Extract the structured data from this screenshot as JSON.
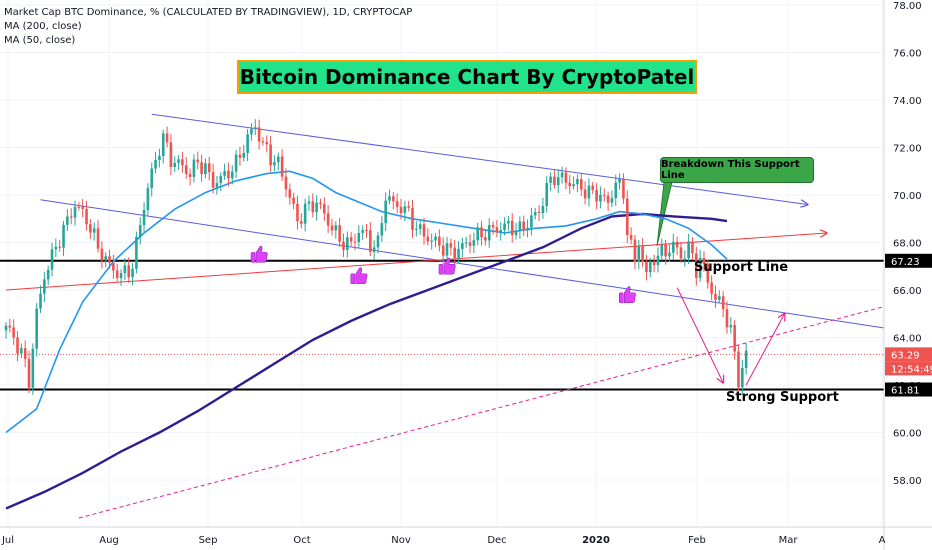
{
  "header": {
    "line1": "Market Cap BTC Dominance, % (CALCULATED BY TRADINGVIEW), 1D, CRYPTOCAP",
    "line2": "MA (200, close)",
    "line3": "MA (50, close)"
  },
  "annotations": {
    "title": "Bitcoin Dominance Chart By CryptoPatel",
    "callout": "Breakdown This Support Line",
    "support_line": "Support Line",
    "strong_support": "Strong Support",
    "thumb_icon": "thumbs-up"
  },
  "colors": {
    "title_bg": "#22e38a",
    "title_border": "#f2a100",
    "up_candle": "#26a69a",
    "down_candle": "#ef5350",
    "ma50": "#2196f3",
    "ma200": "#311b92",
    "channel": "#5b5bdc",
    "red_trend": "#ef3b3b",
    "pink": "#e91e8c",
    "callout_bg": "#3aa648"
  },
  "chart_data": {
    "type": "candlestick",
    "y_ticks": [
      "78.00",
      "76.00",
      "74.00",
      "72.00",
      "70.00",
      "68.00",
      "66.00",
      "64.00",
      "62.00",
      "60.00",
      "58.00"
    ],
    "x_ticks": [
      "Jul",
      "Aug",
      "Sep",
      "Oct",
      "Nov",
      "Dec",
      "2020",
      "Feb",
      "Mar",
      "A"
    ],
    "ylim": [
      56.2,
      78.2
    ],
    "price_labels": {
      "support": "67.23",
      "current": "63.29",
      "countdown": "12:54:49",
      "strong_support": "61.81"
    },
    "close_path": [
      [
        0,
        64.5
      ],
      [
        4,
        63.4
      ],
      [
        6,
        62.2
      ],
      [
        8,
        65.0
      ],
      [
        10,
        66.6
      ],
      [
        13,
        67.8
      ],
      [
        16,
        68.9
      ],
      [
        18,
        69.6
      ],
      [
        21,
        69.0
      ],
      [
        24,
        67.8
      ],
      [
        27,
        67.0
      ],
      [
        30,
        66.6
      ],
      [
        33,
        67.0
      ],
      [
        35,
        68.8
      ],
      [
        37,
        70.3
      ],
      [
        38,
        70.9
      ],
      [
        40,
        72.0
      ],
      [
        41,
        72.4
      ],
      [
        43,
        71.5
      ],
      [
        46,
        71.2
      ],
      [
        48,
        70.9
      ],
      [
        50,
        71.4
      ],
      [
        52,
        71.1
      ],
      [
        54,
        70.5
      ],
      [
        57,
        70.8
      ],
      [
        60,
        71.3
      ],
      [
        63,
        72.4
      ],
      [
        65,
        72.9
      ],
      [
        67,
        72.1
      ],
      [
        69,
        71.6
      ],
      [
        71,
        71.3
      ],
      [
        73,
        70.4
      ],
      [
        76,
        68.9
      ],
      [
        78,
        69.4
      ],
      [
        81,
        69.7
      ],
      [
        84,
        68.9
      ],
      [
        87,
        68.1
      ],
      [
        90,
        67.9
      ],
      [
        92,
        68.5
      ],
      [
        94,
        68.3
      ],
      [
        95,
        67.9
      ],
      [
        97,
        67.9
      ],
      [
        99,
        70.0
      ],
      [
        101,
        69.6
      ],
      [
        103,
        69.5
      ],
      [
        105,
        69.2
      ],
      [
        107,
        68.6
      ],
      [
        110,
        68.2
      ],
      [
        113,
        67.9
      ],
      [
        116,
        67.6
      ],
      [
        119,
        67.8
      ],
      [
        122,
        68.2
      ],
      [
        125,
        68.4
      ],
      [
        128,
        68.6
      ],
      [
        131,
        68.7
      ],
      [
        134,
        68.5
      ],
      [
        137,
        69.0
      ],
      [
        139,
        69.3
      ],
      [
        141,
        70.3
      ],
      [
        143,
        70.8
      ],
      [
        146,
        70.6
      ],
      [
        149,
        70.4
      ],
      [
        152,
        70.1
      ],
      [
        155,
        70.0
      ],
      [
        157,
        69.6
      ],
      [
        159,
        70.6
      ],
      [
        161,
        70.0
      ],
      [
        162,
        68.6
      ],
      [
        164,
        67.1
      ],
      [
        165,
        68.0
      ],
      [
        167,
        66.6
      ],
      [
        169,
        67.4
      ],
      [
        172,
        67.6
      ],
      [
        174,
        67.9
      ],
      [
        176,
        67.4
      ],
      [
        178,
        67.8
      ],
      [
        180,
        66.9
      ],
      [
        181,
        67.3
      ],
      [
        183,
        66.4
      ],
      [
        185,
        65.6
      ],
      [
        187,
        65.3
      ],
      [
        189,
        64.2
      ],
      [
        190,
        63.3
      ],
      [
        191,
        62.2
      ],
      [
        192,
        62.7
      ],
      [
        193,
        63.29
      ]
    ],
    "ma50_path": [
      [
        0,
        60.0
      ],
      [
        8,
        61.0
      ],
      [
        14,
        63.5
      ],
      [
        20,
        65.5
      ],
      [
        28,
        67.2
      ],
      [
        36,
        68.4
      ],
      [
        44,
        69.4
      ],
      [
        52,
        70.1
      ],
      [
        60,
        70.6
      ],
      [
        68,
        70.9
      ],
      [
        74,
        71.0
      ],
      [
        80,
        70.7
      ],
      [
        86,
        70.1
      ],
      [
        92,
        69.7
      ],
      [
        98,
        69.3
      ],
      [
        106,
        69.0
      ],
      [
        114,
        68.8
      ],
      [
        122,
        68.6
      ],
      [
        130,
        68.4
      ],
      [
        138,
        68.6
      ],
      [
        146,
        68.7
      ],
      [
        154,
        69.0
      ],
      [
        160,
        69.3
      ],
      [
        166,
        69.2
      ],
      [
        172,
        69.0
      ],
      [
        178,
        68.6
      ],
      [
        184,
        67.9
      ],
      [
        188,
        67.3
      ]
    ],
    "ma200_path": [
      [
        0,
        56.8
      ],
      [
        10,
        57.5
      ],
      [
        20,
        58.3
      ],
      [
        30,
        59.2
      ],
      [
        40,
        60.0
      ],
      [
        50,
        60.9
      ],
      [
        60,
        61.9
      ],
      [
        70,
        62.9
      ],
      [
        80,
        63.9
      ],
      [
        90,
        64.7
      ],
      [
        100,
        65.4
      ],
      [
        110,
        66.0
      ],
      [
        120,
        66.6
      ],
      [
        130,
        67.2
      ],
      [
        140,
        67.8
      ],
      [
        150,
        68.6
      ],
      [
        158,
        69.1
      ],
      [
        166,
        69.2
      ],
      [
        174,
        69.1
      ],
      [
        184,
        69.0
      ],
      [
        188,
        68.9
      ]
    ],
    "lines": [
      {
        "name": "channel-upper",
        "from": [
          38,
          73.4
        ],
        "to": [
          209,
          69.6
        ],
        "arrow": true
      },
      {
        "name": "channel-lower",
        "from": [
          9,
          69.8
        ],
        "to": [
          229,
          64.4
        ],
        "arrow": false
      },
      {
        "name": "red-trendline",
        "from": [
          0,
          66.0
        ],
        "to": [
          214,
          68.4
        ],
        "arrow": true
      },
      {
        "name": "pink-dashed-trendline",
        "from": [
          19,
          56.4
        ],
        "to": [
          229,
          65.3
        ],
        "arrow": false
      },
      {
        "name": "pink-arrow-down",
        "from": [
          175,
          66.1
        ],
        "to": [
          187,
          62.1
        ],
        "arrow": true
      },
      {
        "name": "pink-arrow-up",
        "from": [
          193,
          62.0
        ],
        "to": [
          203,
          65.0
        ],
        "arrow": true
      }
    ],
    "thumbs": [
      [
        66,
        67.5
      ],
      [
        92,
        66.6
      ],
      [
        115,
        67.0
      ],
      [
        162,
        65.8
      ]
    ],
    "hlines": {
      "support": 67.23,
      "strong": 61.81,
      "current": 63.29
    }
  }
}
